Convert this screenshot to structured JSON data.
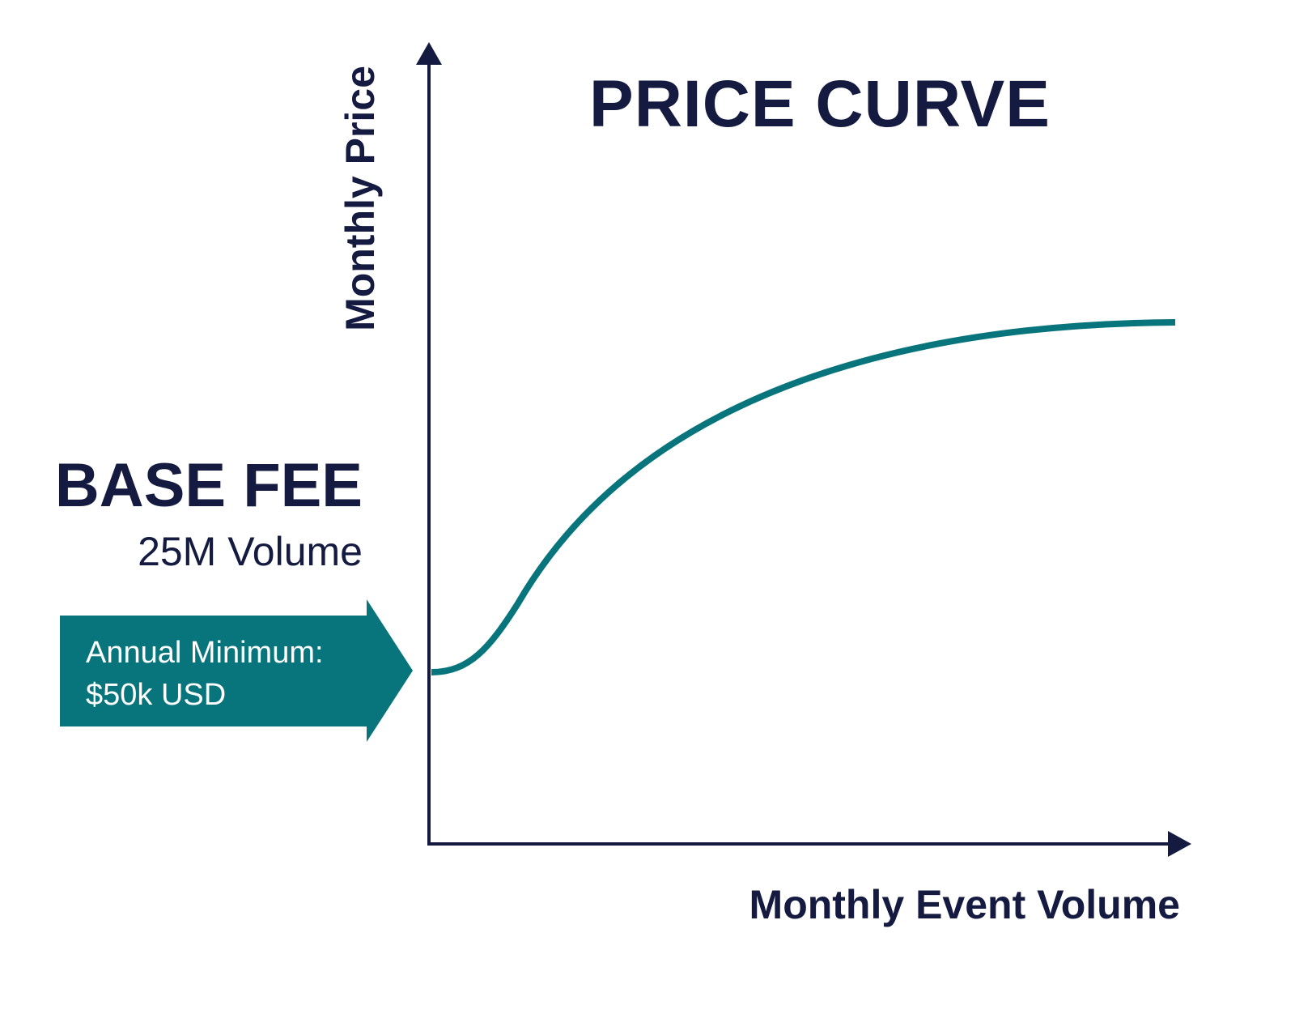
{
  "title": "PRICE CURVE",
  "y_axis_label": "Monthly Price",
  "x_axis_label": "Monthly Event Volume",
  "base_fee": {
    "heading": "BASE FEE",
    "volume": "25M Volume",
    "callout_line1": "Annual Minimum:",
    "callout_line2": "$50k USD"
  },
  "colors": {
    "navy": "#141A40",
    "teal": "#08757C",
    "background": "#FFFFFF"
  }
}
